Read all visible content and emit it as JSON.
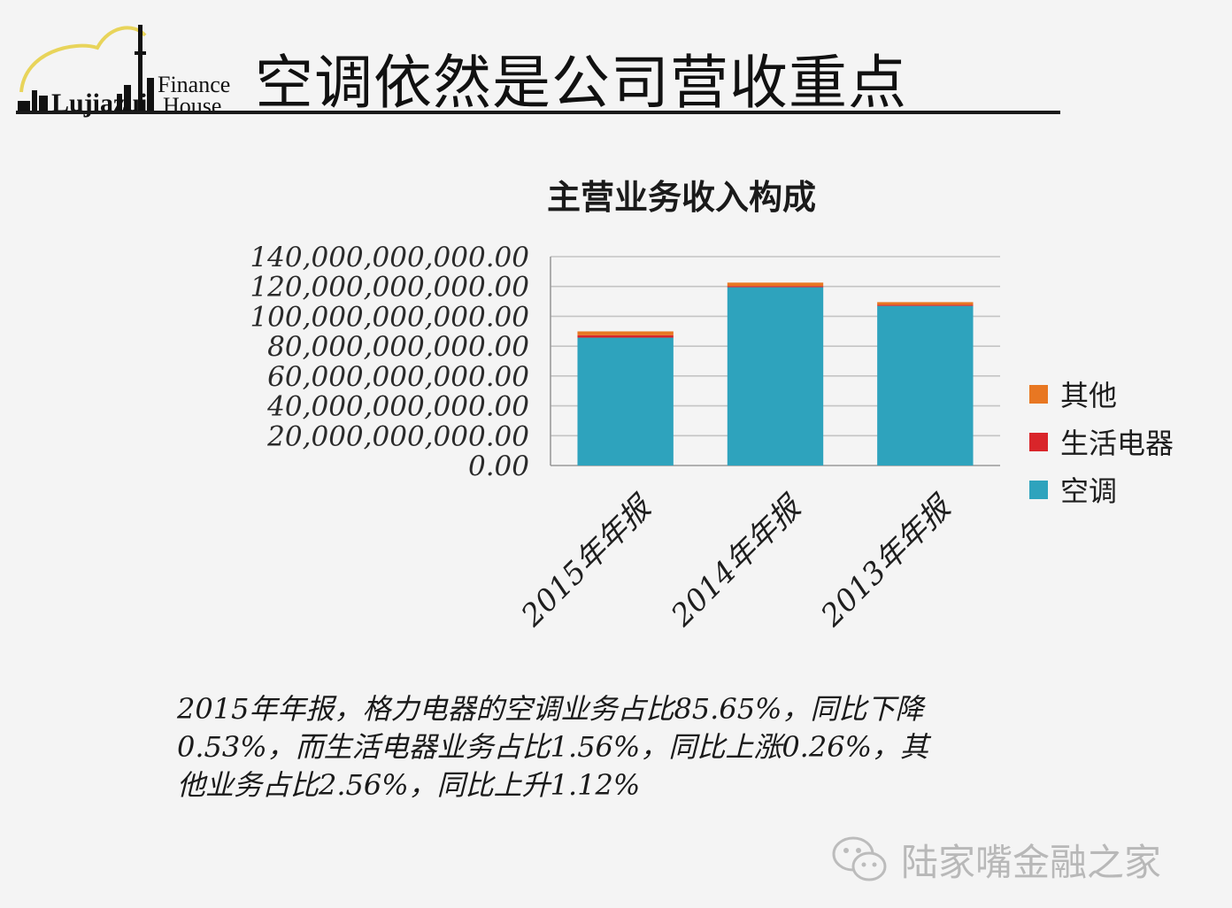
{
  "header": {
    "title": "空调依然是公司营收重点",
    "logo_lines": [
      "Finance",
      "House"
    ],
    "logo_wordmark": "Lujiazui"
  },
  "chart_data": {
    "type": "bar",
    "stacked": true,
    "title": "主营业务收入构成",
    "categories": [
      "2015年年报",
      "2014年年报",
      "2013年年报"
    ],
    "series": [
      {
        "name": "空调",
        "color": "#2ea3bd",
        "values": [
          85700000000,
          119500000000,
          107000000000
        ]
      },
      {
        "name": "生活电器",
        "color": "#d9252a",
        "values": [
          1600000000,
          800000000,
          700000000
        ]
      },
      {
        "name": "其他",
        "color": "#e87722",
        "values": [
          2600000000,
          2300000000,
          1800000000
        ]
      }
    ],
    "ylim": [
      0,
      140000000000
    ],
    "yticks": [
      "0.00",
      "20,000,000,000.00",
      "40,000,000,000.00",
      "60,000,000,000.00",
      "80,000,000,000.00",
      "100,000,000,000.00",
      "120,000,000,000.00",
      "140,000,000,000.00"
    ],
    "legend_order": [
      "其他",
      "生活电器",
      "空调"
    ],
    "legend_position": "right",
    "grid": true
  },
  "caption": {
    "lines": [
      "2015年年报，格力电器的空调业务占比85.65%，同比下降",
      "0.53%，而生活电器业务占比1.56%，同比上涨0.26%，其",
      "他业务占比2.56%，同比上升1.12%"
    ]
  },
  "watermark": {
    "text": "陆家嘴金融之家",
    "icon": "wechat-icon"
  }
}
